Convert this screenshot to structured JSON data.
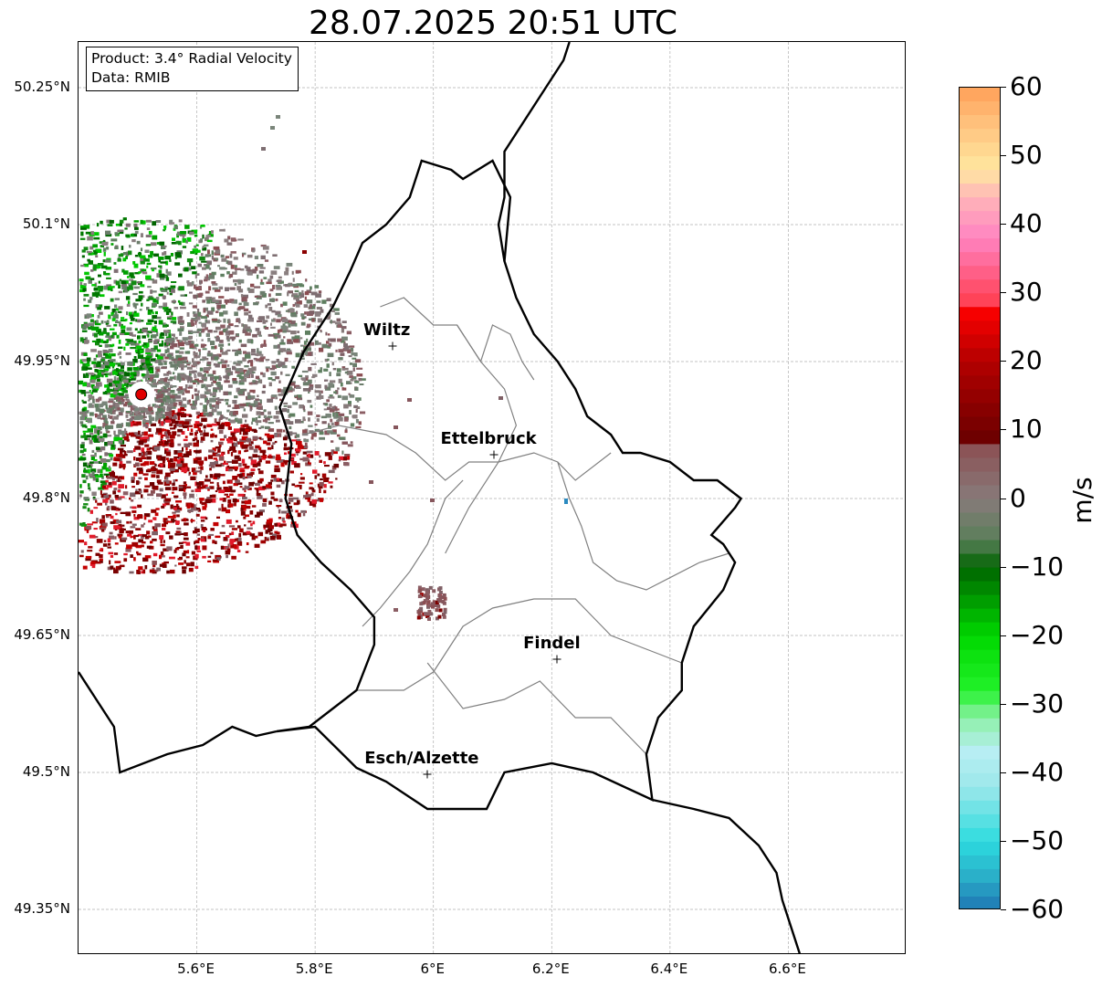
{
  "title": "28.07.2025 20:51 UTC",
  "info_box": {
    "product": "Product: 3.4° Radial Velocity",
    "data_source": "Data: RMIB"
  },
  "map": {
    "lat_range": [
      49.3,
      50.3
    ],
    "lon_range": [
      5.4,
      6.8
    ],
    "lat_ticks": [
      {
        "value": 50.25,
        "label": "50.25°N"
      },
      {
        "value": 50.1,
        "label": "50.1°N"
      },
      {
        "value": 49.95,
        "label": "49.95°N"
      },
      {
        "value": 49.8,
        "label": "49.8°N"
      },
      {
        "value": 49.65,
        "label": "49.65°N"
      },
      {
        "value": 49.5,
        "label": "49.5°N"
      },
      {
        "value": 49.35,
        "label": "49.35°N"
      }
    ],
    "lon_ticks": [
      {
        "value": 5.6,
        "label": "5.6°E"
      },
      {
        "value": 5.8,
        "label": "5.8°E"
      },
      {
        "value": 6.0,
        "label": "6°E"
      },
      {
        "value": 6.2,
        "label": "6.2°E"
      },
      {
        "value": 6.4,
        "label": "6.4°E"
      },
      {
        "value": 6.6,
        "label": "6.6°E"
      }
    ],
    "grid": true,
    "radar_site": {
      "lon": 5.506,
      "lat": 49.914
    },
    "cities": [
      {
        "name": "Wiltz",
        "lon": 5.932,
        "lat": 49.966
      },
      {
        "name": "Ettelbruck",
        "lon": 6.104,
        "lat": 49.847
      },
      {
        "name": "Findel",
        "lon": 6.211,
        "lat": 49.623
      },
      {
        "name": "Esch/Alzette",
        "lon": 5.991,
        "lat": 49.497
      }
    ]
  },
  "colorbar": {
    "unit": "m/s",
    "min": -60,
    "max": 60,
    "tick_labels": [
      "60",
      "50",
      "40",
      "30",
      "20",
      "10",
      "0",
      "−10",
      "−20",
      "−30",
      "−40",
      "−50",
      "−60"
    ],
    "tick_values": [
      60,
      50,
      40,
      30,
      20,
      10,
      0,
      -10,
      -20,
      -30,
      -40,
      -50,
      -60
    ]
  },
  "colors": {
    "border": "#000000",
    "canton_lines": "#808080",
    "grid": "#b0b0b0",
    "radar_site": "#e00000",
    "colorbar_stops": [
      {
        "v": -60,
        "c": "#1f77b4"
      },
      {
        "v": -55,
        "c": "#2ab0c9"
      },
      {
        "v": -50,
        "c": "#2ddbdf"
      },
      {
        "v": -42,
        "c": "#9ce8ea"
      },
      {
        "v": -37,
        "c": "#b7eef3"
      },
      {
        "v": -32,
        "c": "#8ef0a8"
      },
      {
        "v": -28,
        "c": "#22f22a"
      },
      {
        "v": -20,
        "c": "#00d800"
      },
      {
        "v": -10,
        "c": "#006400"
      },
      {
        "v": -6,
        "c": "#5a7f5a"
      },
      {
        "v": 0,
        "c": "#877a7a"
      },
      {
        "v": 8,
        "c": "#8b4e52"
      },
      {
        "v": 8.5,
        "c": "#6b0000"
      },
      {
        "v": 20,
        "c": "#b30000"
      },
      {
        "v": 28,
        "c": "#ff0000"
      },
      {
        "v": 28.5,
        "c": "#ff3f52"
      },
      {
        "v": 38,
        "c": "#ff83c1"
      },
      {
        "v": 44,
        "c": "#ffb5b9"
      },
      {
        "v": 48,
        "c": "#ffe8a0"
      },
      {
        "v": 55,
        "c": "#ffc07b"
      },
      {
        "v": 60,
        "c": "#ff9f58"
      }
    ]
  }
}
